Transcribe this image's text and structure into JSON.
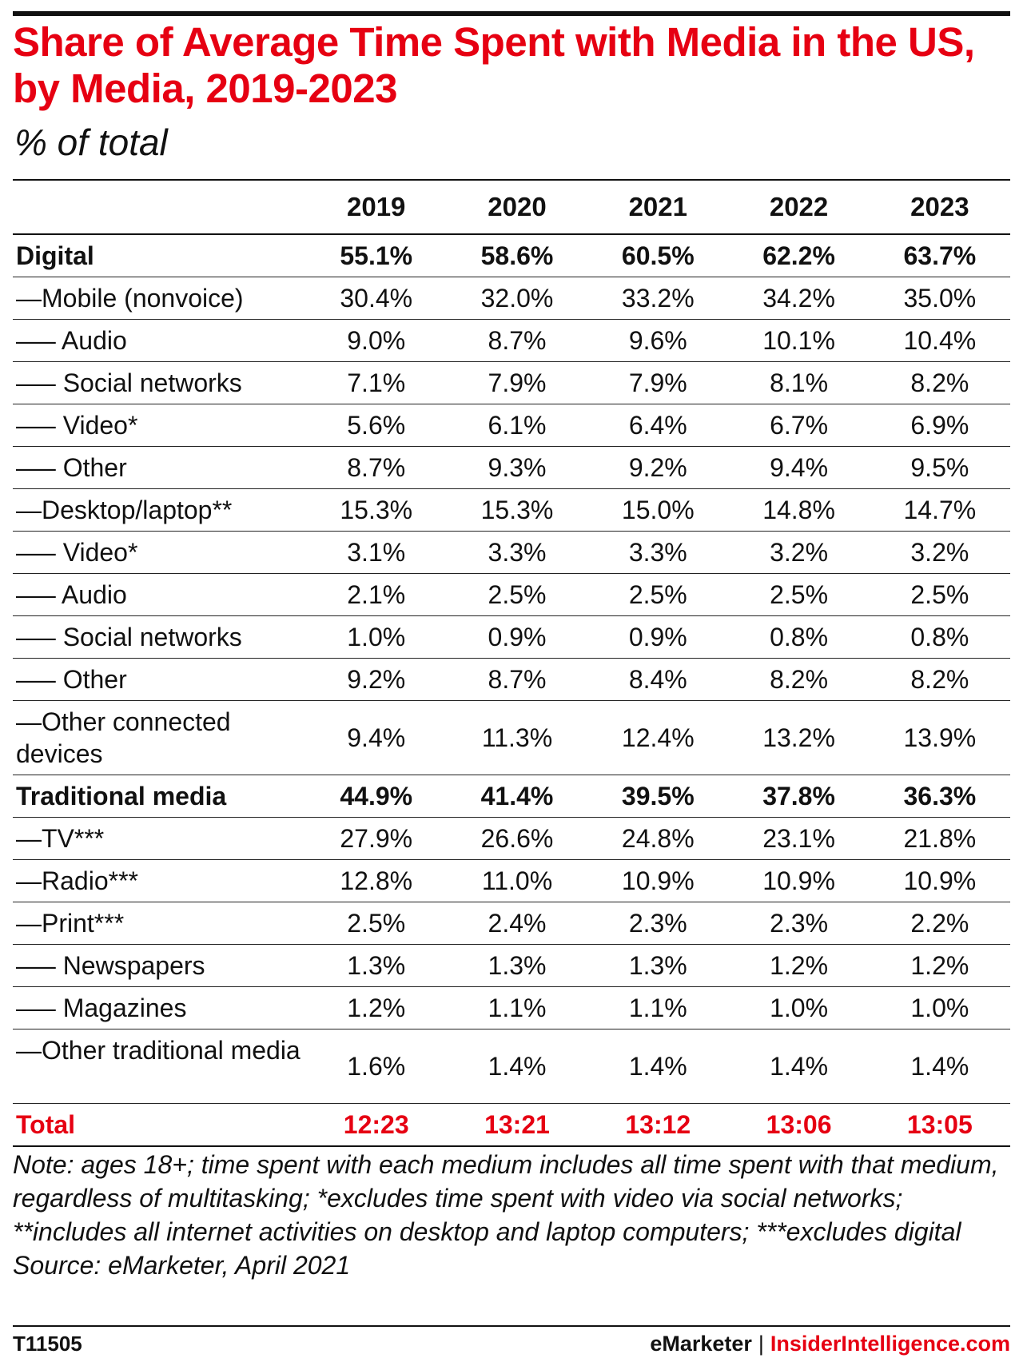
{
  "title": "Share of Average Time Spent with Media in the US, by Media, 2019-2023",
  "subtitle": "% of total",
  "chart_data": {
    "type": "table",
    "columns": [
      "2019",
      "2020",
      "2021",
      "2022",
      "2023"
    ],
    "rows": [
      {
        "label": "Digital",
        "values": [
          "55.1%",
          "58.6%",
          "60.5%",
          "62.2%",
          "63.7%"
        ],
        "style": "bold"
      },
      {
        "label": "—Mobile (nonvoice)",
        "values": [
          "30.4%",
          "32.0%",
          "33.2%",
          "34.2%",
          "35.0%"
        ]
      },
      {
        "label": "—– Audio",
        "values": [
          "9.0%",
          "8.7%",
          "9.6%",
          "10.1%",
          "10.4%"
        ]
      },
      {
        "label": "—– Social networks",
        "values": [
          "7.1%",
          "7.9%",
          "7.9%",
          "8.1%",
          "8.2%"
        ]
      },
      {
        "label": "—– Video*",
        "values": [
          "5.6%",
          "6.1%",
          "6.4%",
          "6.7%",
          "6.9%"
        ]
      },
      {
        "label": "—– Other",
        "values": [
          "8.7%",
          "9.3%",
          "9.2%",
          "9.4%",
          "9.5%"
        ]
      },
      {
        "label": "—Desktop/laptop**",
        "values": [
          "15.3%",
          "15.3%",
          "15.0%",
          "14.8%",
          "14.7%"
        ]
      },
      {
        "label": "—– Video*",
        "values": [
          "3.1%",
          "3.3%",
          "3.3%",
          "3.2%",
          "3.2%"
        ]
      },
      {
        "label": "—– Audio",
        "values": [
          "2.1%",
          "2.5%",
          "2.5%",
          "2.5%",
          "2.5%"
        ]
      },
      {
        "label": "—– Social networks",
        "values": [
          "1.0%",
          "0.9%",
          "0.9%",
          "0.8%",
          "0.8%"
        ]
      },
      {
        "label": "—– Other",
        "values": [
          "9.2%",
          "8.7%",
          "8.4%",
          "8.2%",
          "8.2%"
        ]
      },
      {
        "label": "—Other connected devices",
        "values": [
          "9.4%",
          "11.3%",
          "12.4%",
          "13.2%",
          "13.9%"
        ],
        "style": "two"
      },
      {
        "label": "Traditional media",
        "values": [
          "44.9%",
          "41.4%",
          "39.5%",
          "37.8%",
          "36.3%"
        ],
        "style": "bold"
      },
      {
        "label": "—TV***",
        "values": [
          "27.9%",
          "26.6%",
          "24.8%",
          "23.1%",
          "21.8%"
        ]
      },
      {
        "label": "—Radio***",
        "values": [
          "12.8%",
          "11.0%",
          "10.9%",
          "10.9%",
          "10.9%"
        ]
      },
      {
        "label": "—Print***",
        "values": [
          "2.5%",
          "2.4%",
          "2.3%",
          "2.3%",
          "2.2%"
        ]
      },
      {
        "label": "—– Newspapers",
        "values": [
          "1.3%",
          "1.3%",
          "1.3%",
          "1.2%",
          "1.2%"
        ]
      },
      {
        "label": "—– Magazines",
        "values": [
          "1.2%",
          "1.1%",
          "1.1%",
          "1.0%",
          "1.0%"
        ]
      },
      {
        "label": "—Other traditional media",
        "values": [
          "1.6%",
          "1.4%",
          "1.4%",
          "1.4%",
          "1.4%"
        ],
        "style": "two"
      },
      {
        "label": "Total",
        "values": [
          "12:23",
          "13:21",
          "13:12",
          "13:06",
          "13:05"
        ],
        "style": "total"
      }
    ]
  },
  "note": "Note: ages 18+; time spent with each medium includes all time spent with that medium, regardless of multitasking; *excludes time spent with video via social networks; **includes all internet activities on desktop and laptop computers; ***excludes digital",
  "source": "Source: eMarketer, April 2021",
  "footer": {
    "chart_id": "T11505",
    "brand": "eMarketer",
    "separator": "|",
    "site": "InsiderIntelligence.com"
  },
  "colors": {
    "accent": "#e60012",
    "text": "#111111"
  }
}
